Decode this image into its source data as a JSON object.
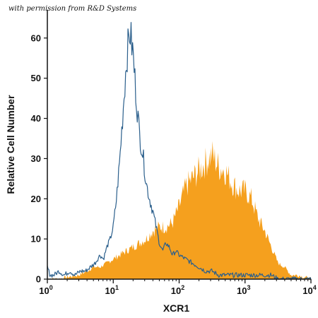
{
  "credit_text": "with permission from R&D Systems",
  "chart_data": {
    "type": "area",
    "title": "",
    "xlabel": "XCR1",
    "ylabel": "Relative Cell Number",
    "xscale": "log",
    "xlim": [
      1,
      10000
    ],
    "ylim": [
      0,
      67
    ],
    "yticks": [
      0,
      10,
      20,
      30,
      40,
      50,
      60
    ],
    "xticks": [
      {
        "value": 1,
        "base": "10",
        "exp": "0"
      },
      {
        "value": 10,
        "base": "10",
        "exp": "1"
      },
      {
        "value": 100,
        "base": "10",
        "exp": "2"
      },
      {
        "value": 1000,
        "base": "10",
        "exp": "3"
      },
      {
        "value": 10000,
        "base": "10",
        "exp": "4"
      }
    ],
    "grid": false,
    "legend": "none",
    "colors": {
      "isotype": "#2b5f8c",
      "stained": "#f5a01e",
      "axis": "#111111"
    },
    "series": [
      {
        "style": "outline",
        "x": [
          1,
          1.1,
          1.26,
          1.5,
          1.8,
          2.2,
          2.6,
          3.2,
          3.8,
          4.5,
          5.3,
          6.3,
          7.1,
          8,
          9,
          10,
          11.2,
          12.6,
          14.1,
          15.8,
          17.8,
          20,
          22.4,
          25.1,
          28.2,
          31.6,
          35.5,
          39.8,
          44.7,
          50.1,
          56.2,
          63.1,
          70.8,
          79.4,
          89.1,
          100,
          125,
          158,
          200,
          251,
          316,
          398,
          501,
          631,
          794,
          1000,
          1260,
          1585,
          1995,
          2512,
          3162,
          3981,
          5012,
          6310,
          10000
        ],
        "y": [
          3,
          1,
          1,
          2,
          1,
          2,
          1,
          2,
          2,
          3,
          4,
          6,
          5,
          8,
          10,
          13,
          20,
          30,
          42,
          54,
          62,
          56,
          45,
          36,
          31,
          24,
          20,
          17,
          13,
          9,
          7,
          9,
          8,
          6,
          7,
          6,
          5,
          4,
          3,
          2,
          2,
          1,
          1,
          1,
          1,
          1,
          1,
          1,
          1,
          1,
          0,
          0,
          0,
          0,
          0
        ]
      },
      {
        "style": "filled",
        "x": [
          1,
          1.5,
          2,
          3,
          4,
          5,
          6.3,
          8,
          10,
          12.6,
          15.8,
          20,
          25.1,
          31.6,
          39.8,
          50.1,
          63.1,
          79.4,
          100,
          126,
          158,
          200,
          251,
          316,
          398,
          501,
          631,
          794,
          1000,
          1259,
          1585,
          1995,
          2512,
          3162,
          3981,
          5012,
          6310,
          7943,
          10000
        ],
        "y": [
          0,
          0,
          0.5,
          1,
          2,
          3,
          3,
          4,
          5,
          6,
          7,
          8,
          9,
          10,
          12,
          13,
          13,
          14,
          18,
          23,
          25,
          27,
          29,
          31,
          28,
          27,
          24,
          22,
          22,
          20,
          15,
          12,
          8,
          4,
          3,
          1,
          1,
          0.5,
          0
        ]
      }
    ]
  }
}
